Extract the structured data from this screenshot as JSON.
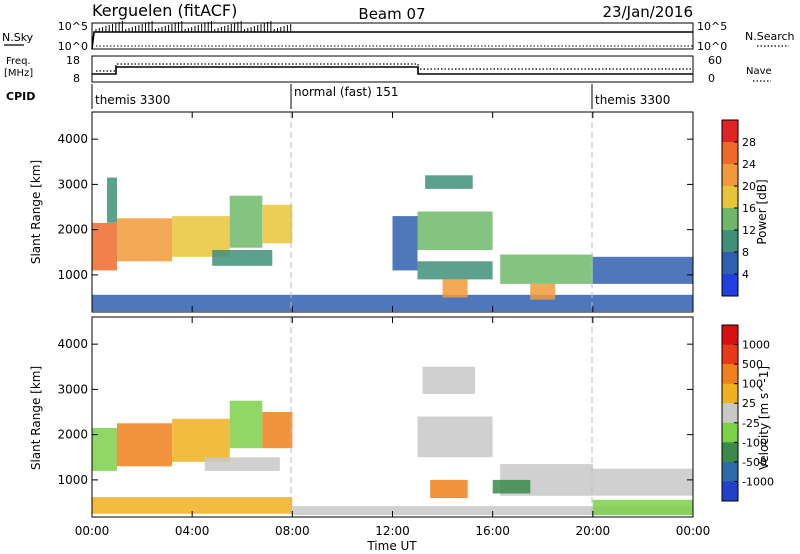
{
  "header": {
    "station": "Kerguelen (fitACF)",
    "beam": "Beam 07",
    "date": "23/Jan/2016"
  },
  "nsky_panel": {
    "left_label": "N.Sky",
    "left_ticks": [
      "10^5",
      "10^0"
    ],
    "right_ticks": [
      "10^5",
      "10^0"
    ],
    "right_label": "N.Search"
  },
  "freq_panel": {
    "left_label_1": "Freq.",
    "left_label_2": "[MHz]",
    "left_ticks": [
      "18",
      "8"
    ],
    "right_ticks": [
      "60",
      "0"
    ],
    "right_label": "Nave"
  },
  "cpid_panel": {
    "label": "CPID",
    "segments": [
      {
        "name": "themis 3300",
        "start_hour": 0,
        "end_hour": 8
      },
      {
        "name": "normal (fast) 151",
        "start_hour": 8,
        "end_hour": 20
      },
      {
        "name": "themis 3300",
        "start_hour": 20,
        "end_hour": 24
      }
    ]
  },
  "chart_data": [
    {
      "type": "heatmap",
      "title": "Power",
      "ylabel": "Slant Range [km]",
      "xlabel": "",
      "xlim_hours": [
        0,
        24
      ],
      "ylim_km": [
        180,
        4600
      ],
      "yticks": [
        "1000",
        "2000",
        "3000",
        "4000"
      ],
      "colorbar": {
        "label": "Power [dB]",
        "ticks": [
          "4",
          "8",
          "12",
          "16",
          "20",
          "24",
          "28"
        ],
        "levels": [
          {
            "min": 0,
            "max": 4,
            "color": "#1f3fe0"
          },
          {
            "min": 4,
            "max": 8,
            "color": "#2f5fb0"
          },
          {
            "min": 8,
            "max": 12,
            "color": "#3f8f7a"
          },
          {
            "min": 12,
            "max": 16,
            "color": "#6fb86a"
          },
          {
            "min": 16,
            "max": 20,
            "color": "#e8c43a"
          },
          {
            "min": 20,
            "max": 24,
            "color": "#f29a3a"
          },
          {
            "min": 24,
            "max": 28,
            "color": "#ee6a2a"
          },
          {
            "min": 28,
            "max": 32,
            "color": "#e02424"
          }
        ]
      },
      "regions": [
        {
          "t0": 0.0,
          "t1": 1.0,
          "r0": 1100,
          "r1": 2150,
          "v": 24
        },
        {
          "t0": 1.0,
          "t1": 3.2,
          "r0": 1300,
          "r1": 2250,
          "v": 20
        },
        {
          "t0": 3.2,
          "t1": 5.5,
          "r0": 1400,
          "r1": 2300,
          "v": 17
        },
        {
          "t0": 5.5,
          "t1": 6.8,
          "r0": 1600,
          "r1": 2750,
          "v": 14
        },
        {
          "t0": 6.8,
          "t1": 8.0,
          "r0": 1700,
          "r1": 2550,
          "v": 16
        },
        {
          "t0": 4.8,
          "t1": 7.2,
          "r0": 1200,
          "r1": 1550,
          "v": 8
        },
        {
          "t0": 0.6,
          "t1": 1.0,
          "r0": 2150,
          "r1": 3150,
          "v": 11
        },
        {
          "t0": 0.0,
          "t1": 24.0,
          "r0": 200,
          "r1": 560,
          "v": 6
        },
        {
          "t0": 13.0,
          "t1": 16.0,
          "r0": 1550,
          "r1": 2400,
          "v": 12
        },
        {
          "t0": 13.3,
          "t1": 15.2,
          "r0": 2900,
          "r1": 3200,
          "v": 10
        },
        {
          "t0": 13.0,
          "t1": 16.0,
          "r0": 900,
          "r1": 1300,
          "v": 9
        },
        {
          "t0": 14.0,
          "t1": 15.0,
          "r0": 500,
          "r1": 900,
          "v": 22
        },
        {
          "t0": 16.3,
          "t1": 20.0,
          "r0": 800,
          "r1": 1450,
          "v": 14
        },
        {
          "t0": 17.5,
          "t1": 18.5,
          "r0": 450,
          "r1": 800,
          "v": 23
        },
        {
          "t0": 20.0,
          "t1": 24.0,
          "r0": 800,
          "r1": 1400,
          "v": 6
        },
        {
          "t0": 12.0,
          "t1": 13.0,
          "r0": 1100,
          "r1": 2300,
          "v": 5
        }
      ]
    },
    {
      "type": "heatmap",
      "title": "Velocity",
      "ylabel": "Slant Range [km]",
      "xlabel": "Time UT",
      "xlim_hours": [
        0,
        24
      ],
      "ylim_km": [
        180,
        4600
      ],
      "xticks": [
        "00:00",
        "04:00",
        "08:00",
        "12:00",
        "16:00",
        "20:00",
        "00:00"
      ],
      "yticks": [
        "1000",
        "2000",
        "3000",
        "4000"
      ],
      "colorbar": {
        "label": "Velocity [m s^-1]",
        "ticks": [
          "1000",
          "500",
          "100",
          "25",
          "-25",
          "-100",
          "-500",
          "-1000"
        ],
        "levels": [
          {
            "min": 1000,
            "max": 1500,
            "color": "#2340c8"
          },
          {
            "min": 500,
            "max": 1000,
            "color": "#2f6aa8"
          },
          {
            "min": 100,
            "max": 500,
            "color": "#3b8a4a"
          },
          {
            "min": 25,
            "max": 100,
            "color": "#7cd04a"
          },
          {
            "min": -25,
            "max": 25,
            "color": "#c8c8c8"
          },
          {
            "min": -100,
            "max": -25,
            "color": "#f0b020"
          },
          {
            "min": -500,
            "max": -100,
            "color": "#f0801c"
          },
          {
            "min": -1000,
            "max": -500,
            "color": "#e83a1a"
          },
          {
            "min": -1500,
            "max": -1000,
            "color": "#d81010"
          }
        ]
      },
      "regions": [
        {
          "t0": 0.0,
          "t1": 1.0,
          "r0": 1200,
          "r1": 2150,
          "v": 50
        },
        {
          "t0": 1.0,
          "t1": 3.2,
          "r0": 1300,
          "r1": 2250,
          "v": -150
        },
        {
          "t0": 3.2,
          "t1": 5.5,
          "r0": 1400,
          "r1": 2350,
          "v": -80
        },
        {
          "t0": 5.5,
          "t1": 6.8,
          "r0": 1700,
          "r1": 2750,
          "v": 60
        },
        {
          "t0": 6.8,
          "t1": 8.0,
          "r0": 1700,
          "r1": 2500,
          "v": -300
        },
        {
          "t0": 4.5,
          "t1": 7.5,
          "r0": 1200,
          "r1": 1500,
          "v": 0
        },
        {
          "t0": 0.0,
          "t1": 8.0,
          "r0": 250,
          "r1": 620,
          "v": -60
        },
        {
          "t0": 8.0,
          "t1": 24.0,
          "r0": 220,
          "r1": 420,
          "v": 0
        },
        {
          "t0": 13.0,
          "t1": 16.0,
          "r0": 1500,
          "r1": 2400,
          "v": 0
        },
        {
          "t0": 13.2,
          "t1": 15.3,
          "r0": 2900,
          "r1": 3500,
          "v": 0
        },
        {
          "t0": 13.5,
          "t1": 15.0,
          "r0": 600,
          "r1": 1000,
          "v": -200
        },
        {
          "t0": 16.3,
          "t1": 20.0,
          "r0": 650,
          "r1": 1350,
          "v": 0
        },
        {
          "t0": 20.0,
          "t1": 24.0,
          "r0": 650,
          "r1": 1250,
          "v": 0
        },
        {
          "t0": 16.0,
          "t1": 17.5,
          "r0": 700,
          "r1": 1000,
          "v": 200
        },
        {
          "t0": 20.0,
          "t1": 24.0,
          "r0": 220,
          "r1": 560,
          "v": 60
        }
      ]
    }
  ]
}
